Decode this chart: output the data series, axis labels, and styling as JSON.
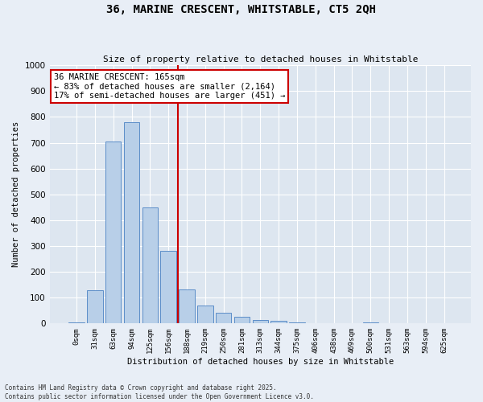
{
  "title": "36, MARINE CRESCENT, WHITSTABLE, CT5 2QH",
  "subtitle": "Size of property relative to detached houses in Whitstable",
  "xlabel": "Distribution of detached houses by size in Whitstable",
  "ylabel": "Number of detached properties",
  "bar_color": "#b8cfe8",
  "bar_edge_color": "#5b8dc8",
  "bg_color": "#dde6f0",
  "grid_color": "#ffffff",
  "fig_color": "#e8eef6",
  "categories": [
    "0sqm",
    "31sqm",
    "63sqm",
    "94sqm",
    "125sqm",
    "156sqm",
    "188sqm",
    "219sqm",
    "250sqm",
    "281sqm",
    "313sqm",
    "344sqm",
    "375sqm",
    "406sqm",
    "438sqm",
    "469sqm",
    "500sqm",
    "531sqm",
    "563sqm",
    "594sqm",
    "625sqm"
  ],
  "values": [
    5,
    130,
    706,
    780,
    450,
    280,
    133,
    70,
    40,
    25,
    15,
    10,
    5,
    0,
    0,
    0,
    5,
    0,
    0,
    0,
    0
  ],
  "ylim": [
    0,
    1000
  ],
  "yticks": [
    0,
    100,
    200,
    300,
    400,
    500,
    600,
    700,
    800,
    900,
    1000
  ],
  "vline_index": 5.5,
  "vline_color": "#cc0000",
  "annotation_text": "36 MARINE CRESCENT: 165sqm\n← 83% of detached houses are smaller (2,164)\n17% of semi-detached houses are larger (451) →",
  "annotation_box_color": "#ffffff",
  "annotation_box_edge": "#cc0000",
  "footer_line1": "Contains HM Land Registry data © Crown copyright and database right 2025.",
  "footer_line2": "Contains public sector information licensed under the Open Government Licence v3.0."
}
